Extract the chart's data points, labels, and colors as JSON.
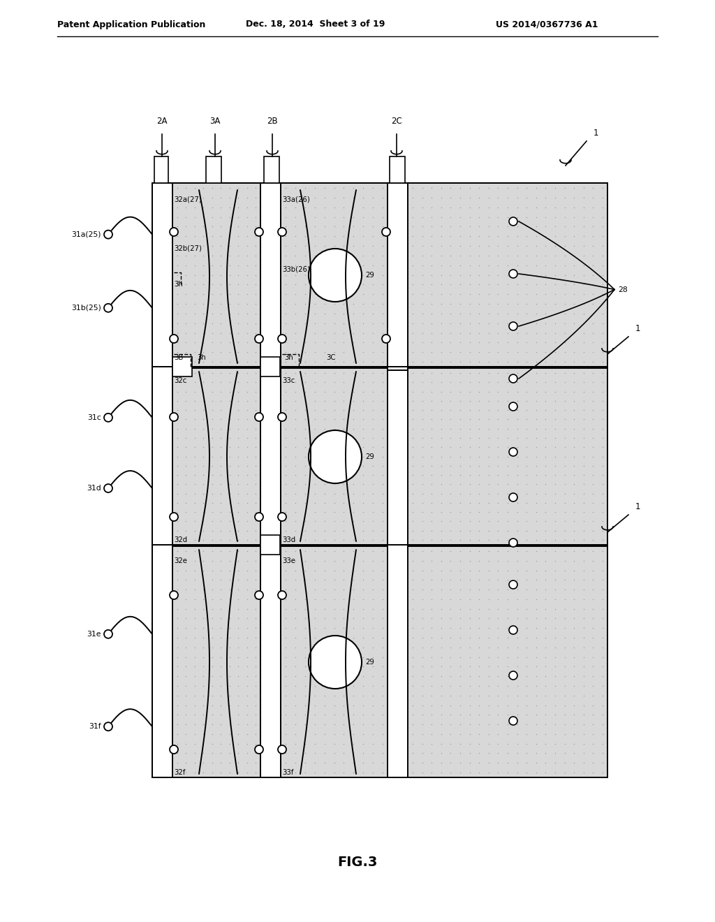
{
  "title": "FIG.3",
  "header_left": "Patent Application Publication",
  "header_middle": "Dec. 18, 2014  Sheet 3 of 19",
  "header_right": "US 2014/0367736 A1",
  "bg_color": "#ffffff",
  "fig_width": 10.24,
  "fig_height": 13.2,
  "lw_main": 1.4,
  "lw_thin": 1.0,
  "stipple_color": "#d8d8d8",
  "stipple_dot_color": "#999999",
  "font_size_label": 7.8,
  "font_size_header": 9.0,
  "font_size_title": 14.0,
  "font_size_top": 8.5
}
